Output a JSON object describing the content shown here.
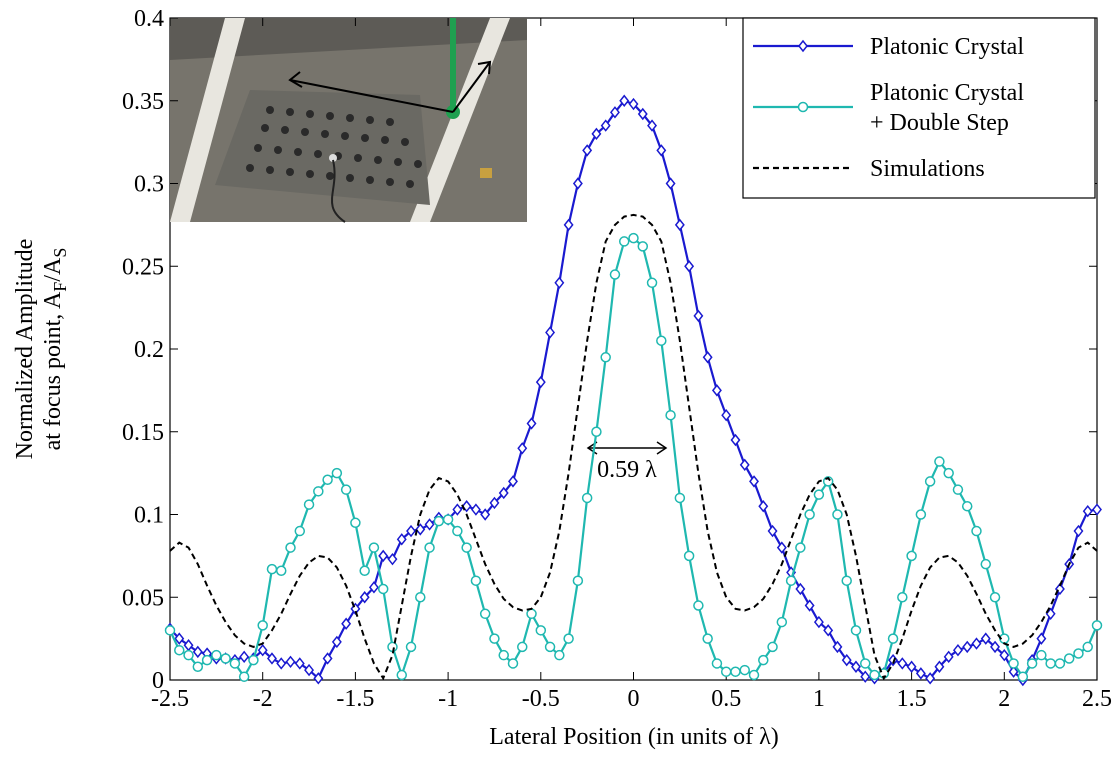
{
  "chart_data": {
    "type": "line",
    "xlabel": "Lateral Position (in units of λ)",
    "ylabel": [
      "Normalized Amplitude",
      "at focus point, A",
      "F",
      "/A",
      "S"
    ],
    "annotation": "0.59 λ",
    "xlim": [
      -2.5,
      2.5
    ],
    "ylim": [
      0,
      0.4
    ],
    "xticks": [
      -2.5,
      -2,
      -1.5,
      -1,
      -0.5,
      0,
      0.5,
      1,
      1.5,
      2,
      2.5
    ],
    "yticks": [
      0,
      0.05,
      0.1,
      0.15,
      0.2,
      0.25,
      0.3,
      0.35,
      0.4
    ],
    "legend": "upper right",
    "x": [
      -2.5,
      -2.45,
      -2.4,
      -2.35,
      -2.3,
      -2.25,
      -2.2,
      -2.15,
      -2.1,
      -2.05,
      -2.0,
      -1.95,
      -1.9,
      -1.85,
      -1.8,
      -1.75,
      -1.7,
      -1.65,
      -1.6,
      -1.55,
      -1.5,
      -1.45,
      -1.4,
      -1.35,
      -1.3,
      -1.25,
      -1.2,
      -1.15,
      -1.1,
      -1.05,
      -1.0,
      -0.95,
      -0.9,
      -0.85,
      -0.8,
      -0.75,
      -0.7,
      -0.65,
      -0.6,
      -0.55,
      -0.5,
      -0.45,
      -0.4,
      -0.35,
      -0.3,
      -0.25,
      -0.2,
      -0.15,
      -0.1,
      -0.05,
      0,
      0.05,
      0.1,
      0.15,
      0.2,
      0.25,
      0.3,
      0.35,
      0.4,
      0.45,
      0.5,
      0.55,
      0.6,
      0.65,
      0.7,
      0.75,
      0.8,
      0.85,
      0.9,
      0.95,
      1.0,
      1.05,
      1.1,
      1.15,
      1.2,
      1.25,
      1.3,
      1.35,
      1.4,
      1.45,
      1.5,
      1.55,
      1.6,
      1.65,
      1.7,
      1.75,
      1.8,
      1.85,
      1.9,
      1.95,
      2.0,
      2.05,
      2.1,
      2.15,
      2.2,
      2.25,
      2.3,
      2.35,
      2.4,
      2.45,
      2.5
    ],
    "series": [
      {
        "name": "Platonic Crystal",
        "color": "#1a1ad0",
        "marker": "diamond",
        "dash": false,
        "values": [
          0.031,
          0.025,
          0.021,
          0.017,
          0.016,
          0.013,
          0.013,
          0.012,
          0.014,
          0.013,
          0.018,
          0.013,
          0.01,
          0.011,
          0.01,
          0.006,
          0.001,
          0.013,
          0.023,
          0.034,
          0.043,
          0.05,
          0.056,
          0.075,
          0.073,
          0.085,
          0.09,
          0.091,
          0.094,
          0.098,
          0.097,
          0.103,
          0.105,
          0.103,
          0.1,
          0.107,
          0.113,
          0.12,
          0.14,
          0.155,
          0.18,
          0.21,
          0.24,
          0.275,
          0.3,
          0.32,
          0.33,
          0.335,
          0.343,
          0.35,
          0.348,
          0.342,
          0.335,
          0.32,
          0.3,
          0.275,
          0.25,
          0.22,
          0.195,
          0.175,
          0.16,
          0.145,
          0.13,
          0.12,
          0.105,
          0.09,
          0.08,
          0.065,
          0.055,
          0.045,
          0.035,
          0.03,
          0.02,
          0.012,
          0.008,
          0.002,
          0.001,
          0.004,
          0.012,
          0.01,
          0.008,
          0.004,
          0.001,
          0.008,
          0.014,
          0.018,
          0.02,
          0.022,
          0.025,
          0.02,
          0.015,
          0.005,
          0.0,
          0.012,
          0.025,
          0.04,
          0.055,
          0.07,
          0.09,
          0.102,
          0.103
        ]
      },
      {
        "name": "Platonic Crystal + Double Step",
        "color": "#1fb8b0",
        "marker": "circle",
        "dash": false,
        "values": [
          0.03,
          0.018,
          0.015,
          0.008,
          0.012,
          0.015,
          0.013,
          0.01,
          0.002,
          0.012,
          0.033,
          0.067,
          0.066,
          0.08,
          0.09,
          0.106,
          0.114,
          0.121,
          0.125,
          0.115,
          0.095,
          0.066,
          0.08,
          0.055,
          0.02,
          0.003,
          0.02,
          0.05,
          0.08,
          0.096,
          0.097,
          0.09,
          0.08,
          0.06,
          0.04,
          0.025,
          0.015,
          0.01,
          0.02,
          0.04,
          0.03,
          0.02,
          0.015,
          0.025,
          0.06,
          0.11,
          0.15,
          0.195,
          0.245,
          0.265,
          0.267,
          0.262,
          0.24,
          0.205,
          0.16,
          0.11,
          0.075,
          0.045,
          0.025,
          0.01,
          0.005,
          0.005,
          0.006,
          0.003,
          0.012,
          0.02,
          0.035,
          0.06,
          0.08,
          0.1,
          0.112,
          0.12,
          0.1,
          0.06,
          0.03,
          0.01,
          0.003,
          0.004,
          0.025,
          0.05,
          0.075,
          0.1,
          0.12,
          0.132,
          0.125,
          0.115,
          0.105,
          0.09,
          0.07,
          0.05,
          0.025,
          0.01,
          0.002,
          0.01,
          0.015,
          0.01,
          0.01,
          0.013,
          0.016,
          0.02,
          0.033
        ]
      },
      {
        "name": "Simulations",
        "color": "#000000",
        "marker": "none",
        "dash": true,
        "values": [
          0.078,
          0.083,
          0.08,
          0.07,
          0.057,
          0.045,
          0.035,
          0.027,
          0.022,
          0.02,
          0.022,
          0.03,
          0.04,
          0.052,
          0.063,
          0.071,
          0.075,
          0.074,
          0.068,
          0.057,
          0.042,
          0.025,
          0.01,
          0.001,
          0.015,
          0.045,
          0.075,
          0.1,
          0.115,
          0.122,
          0.12,
          0.112,
          0.1,
          0.085,
          0.07,
          0.058,
          0.049,
          0.044,
          0.042,
          0.043,
          0.05,
          0.065,
          0.09,
          0.125,
          0.165,
          0.205,
          0.24,
          0.265,
          0.275,
          0.28,
          0.281,
          0.28,
          0.275,
          0.265,
          0.24,
          0.205,
          0.165,
          0.125,
          0.09,
          0.065,
          0.05,
          0.043,
          0.042,
          0.044,
          0.049,
          0.058,
          0.07,
          0.085,
          0.1,
          0.112,
          0.12,
          0.122,
          0.115,
          0.1,
          0.075,
          0.045,
          0.015,
          0.001,
          0.01,
          0.025,
          0.042,
          0.057,
          0.068,
          0.074,
          0.075,
          0.071,
          0.063,
          0.052,
          0.04,
          0.03,
          0.022,
          0.02,
          0.022,
          0.027,
          0.035,
          0.045,
          0.057,
          0.07,
          0.08,
          0.083,
          0.078
        ]
      }
    ]
  }
}
